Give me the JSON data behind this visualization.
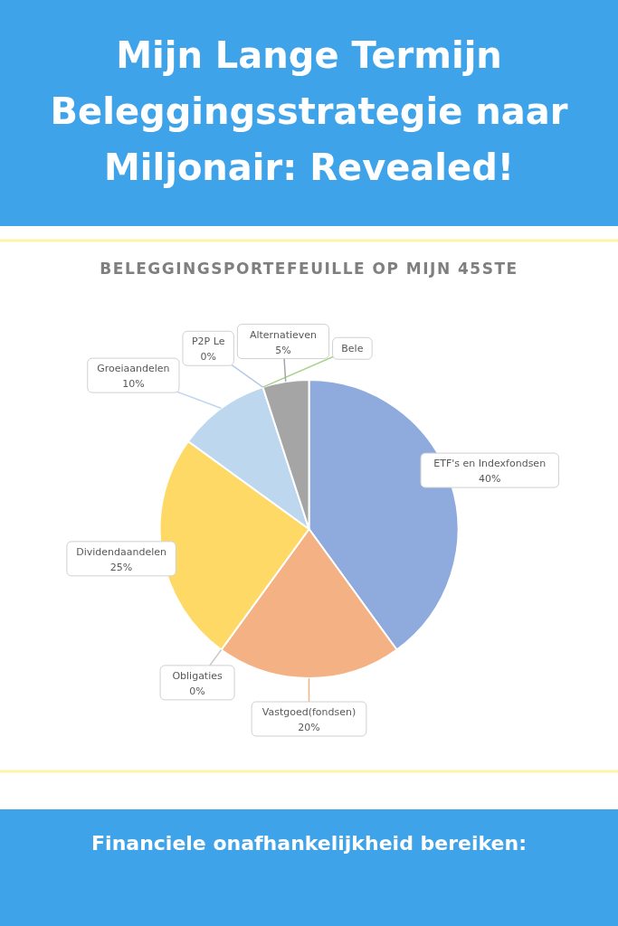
{
  "chart_data": {
    "type": "pie",
    "title": "Mijn Lange Termijn Beleggingsstrategie naar Miljonair: Revealed!",
    "subtitle": "BELEGGINGSPORTEFEUILLE OP MIJN 45STE",
    "annotations": [
      "Financiele onafhankelijkheid bereiken:"
    ],
    "categories": [
      "ETF's en Indexfondsen",
      "Vastgoed(fondsen)",
      "Obligaties",
      "Dividendaandelen",
      "Groeiaandelen",
      "Bele",
      "P2P Le",
      "Alternatieven"
    ],
    "values": [
      40,
      20,
      0,
      25,
      10,
      0,
      0,
      5
    ],
    "value_labels": [
      "40%",
      "20%",
      "0%",
      "25%",
      "10%",
      null,
      "0%",
      "5%"
    ],
    "colors": [
      "#8faadc",
      "#f4b183",
      "#c9c9c9",
      "#ffd966",
      "#bdd7ee",
      "#a9d18e",
      "#b4c7e7",
      "#a5a5a5"
    ]
  }
}
